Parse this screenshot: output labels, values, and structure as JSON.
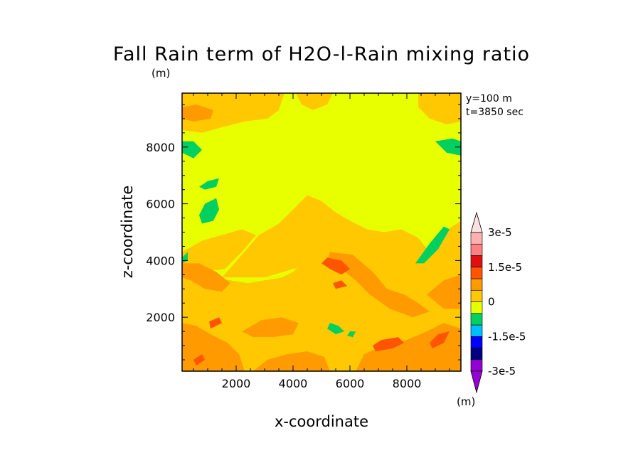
{
  "chart_data": {
    "type": "heatmap",
    "title": "Fall Rain term of H2O-l-Rain mixing ratio",
    "units": "(m)",
    "xlabel": "x-coordinate",
    "ylabel": "z-coordinate",
    "xlim": [
      100,
      9900
    ],
    "ylim": [
      100,
      9900
    ],
    "xticks": [
      2000,
      4000,
      6000,
      8000
    ],
    "yticks": [
      2000,
      4000,
      6000,
      8000
    ],
    "annotations": [
      "y=100 m",
      "t=3850 sec"
    ],
    "colorbar": {
      "units": "(m)",
      "labels": [
        {
          "text": "3e-5",
          "value": 3e-05
        },
        {
          "text": "1.5e-5",
          "value": 1.5e-05
        },
        {
          "text": "0",
          "value": 0
        },
        {
          "text": "-1.5e-5",
          "value": -1.5e-05
        },
        {
          "text": "-3e-5",
          "value": -3e-05
        }
      ],
      "colors": [
        "#9400d3",
        "#000080",
        "#0000ff",
        "#00bfff",
        "#00d060",
        "#e8ff00",
        "#ffc800",
        "#ff9a00",
        "#ff5500",
        "#e01010",
        "#ff8080",
        "#ffb0b0"
      ],
      "over_color": "#ffe0e0",
      "under_color": "#9400d3",
      "levels": [
        -3e-05,
        -2.5e-05,
        -2e-05,
        -1.5e-05,
        -1e-05,
        -5e-06,
        0,
        5e-06,
        1e-05,
        1.5e-05,
        2e-05,
        2.5e-05,
        3e-05
      ]
    },
    "field_colors": {
      "background": "#e8ff00",
      "light_orange": "#ffc800",
      "orange": "#ff9a00",
      "dark_orange": "#ff5500",
      "green": "#00d060"
    },
    "regions": [
      {
        "level": "light_orange",
        "points": [
          [
            100,
            100
          ],
          [
            9900,
            100
          ],
          [
            9900,
            5400
          ],
          [
            9000,
            4800
          ],
          [
            8600,
            4200
          ],
          [
            8000,
            3900
          ],
          [
            7200,
            3800
          ],
          [
            6700,
            4000
          ],
          [
            6200,
            4100
          ],
          [
            5700,
            4200
          ],
          [
            5200,
            4300
          ],
          [
            4800,
            4200
          ],
          [
            4400,
            4000
          ],
          [
            4000,
            3600
          ],
          [
            3600,
            3400
          ],
          [
            3000,
            3300
          ],
          [
            2400,
            3200
          ],
          [
            1800,
            3300
          ],
          [
            1200,
            3400
          ],
          [
            600,
            3500
          ],
          [
            100,
            3600
          ]
        ]
      },
      {
        "level": "light_orange",
        "points": [
          [
            1500,
            3400
          ],
          [
            2200,
            4200
          ],
          [
            2800,
            4900
          ],
          [
            3500,
            5300
          ],
          [
            4000,
            5800
          ],
          [
            4500,
            6300
          ],
          [
            5000,
            6100
          ],
          [
            5500,
            5700
          ],
          [
            6000,
            5400
          ],
          [
            6600,
            5100
          ],
          [
            7200,
            5000
          ],
          [
            7800,
            5100
          ],
          [
            8400,
            4800
          ],
          [
            8800,
            4300
          ],
          [
            8400,
            3800
          ],
          [
            7600,
            3700
          ],
          [
            6800,
            3800
          ],
          [
            6000,
            3900
          ],
          [
            5000,
            4000
          ],
          [
            4000,
            3700
          ],
          [
            3000,
            3400
          ]
        ]
      },
      {
        "level": "light_orange",
        "points": [
          [
            100,
            4300
          ],
          [
            800,
            4700
          ],
          [
            1500,
            4900
          ],
          [
            2200,
            5100
          ],
          [
            2700,
            4900
          ],
          [
            2200,
            4300
          ],
          [
            1600,
            3700
          ],
          [
            800,
            3600
          ],
          [
            100,
            3700
          ]
        ]
      },
      {
        "level": "light_orange",
        "points": [
          [
            100,
            9900
          ],
          [
            3700,
            9900
          ],
          [
            3500,
            9300
          ],
          [
            3100,
            9000
          ],
          [
            2300,
            8900
          ],
          [
            1500,
            8700
          ],
          [
            800,
            8500
          ],
          [
            100,
            8600
          ]
        ]
      },
      {
        "level": "light_orange",
        "points": [
          [
            4100,
            9900
          ],
          [
            5400,
            9900
          ],
          [
            5200,
            9500
          ],
          [
            4700,
            9300
          ],
          [
            4300,
            9500
          ]
        ]
      },
      {
        "level": "light_orange",
        "points": [
          [
            8400,
            9900
          ],
          [
            9900,
            9900
          ],
          [
            9900,
            8900
          ],
          [
            9400,
            8800
          ],
          [
            8800,
            9000
          ],
          [
            8400,
            9400
          ]
        ]
      },
      {
        "level": "orange",
        "points": [
          [
            100,
            100
          ],
          [
            2300,
            100
          ],
          [
            2100,
            700
          ],
          [
            1700,
            1100
          ],
          [
            1100,
            1400
          ],
          [
            600,
            1700
          ],
          [
            100,
            1800
          ]
        ]
      },
      {
        "level": "orange",
        "points": [
          [
            2600,
            100
          ],
          [
            5300,
            100
          ],
          [
            5100,
            600
          ],
          [
            4500,
            800
          ],
          [
            3800,
            700
          ],
          [
            3100,
            500
          ]
        ]
      },
      {
        "level": "orange",
        "points": [
          [
            6200,
            100
          ],
          [
            9900,
            100
          ],
          [
            9900,
            1600
          ],
          [
            9300,
            1800
          ],
          [
            8700,
            1500
          ],
          [
            8000,
            1200
          ],
          [
            7200,
            1000
          ],
          [
            6500,
            700
          ]
        ]
      },
      {
        "level": "orange",
        "points": [
          [
            5300,
            4300
          ],
          [
            6100,
            4200
          ],
          [
            6800,
            3600
          ],
          [
            7300,
            3000
          ],
          [
            7900,
            2800
          ],
          [
            8400,
            2500
          ],
          [
            8800,
            2200
          ],
          [
            8200,
            2000
          ],
          [
            7400,
            2300
          ],
          [
            6700,
            2800
          ],
          [
            6200,
            3300
          ],
          [
            5700,
            3700
          ],
          [
            5200,
            4000
          ]
        ]
      },
      {
        "level": "orange",
        "points": [
          [
            100,
            3900
          ],
          [
            700,
            3900
          ],
          [
            1300,
            3600
          ],
          [
            1800,
            3200
          ],
          [
            1500,
            2900
          ],
          [
            900,
            3000
          ],
          [
            400,
            3300
          ],
          [
            100,
            3400
          ]
        ]
      },
      {
        "level": "orange",
        "points": [
          [
            2200,
            1500
          ],
          [
            2900,
            1900
          ],
          [
            3600,
            2000
          ],
          [
            4200,
            1800
          ],
          [
            4000,
            1400
          ],
          [
            3300,
            1300
          ],
          [
            2600,
            1300
          ]
        ]
      },
      {
        "level": "orange",
        "points": [
          [
            8700,
            2800
          ],
          [
            9300,
            3300
          ],
          [
            9900,
            3500
          ],
          [
            9900,
            2300
          ],
          [
            9300,
            2300
          ]
        ]
      },
      {
        "level": "orange",
        "points": [
          [
            100,
            9400
          ],
          [
            600,
            9500
          ],
          [
            1200,
            9300
          ],
          [
            1100,
            9000
          ],
          [
            500,
            8900
          ],
          [
            100,
            9000
          ]
        ]
      },
      {
        "level": "dark_orange",
        "points": [
          [
            5200,
            4100
          ],
          [
            5700,
            4000
          ],
          [
            6000,
            3700
          ],
          [
            5700,
            3500
          ],
          [
            5300,
            3700
          ],
          [
            5000,
            3900
          ]
        ]
      },
      {
        "level": "dark_orange",
        "points": [
          [
            6900,
            800
          ],
          [
            7500,
            900
          ],
          [
            7900,
            1100
          ],
          [
            7700,
            1300
          ],
          [
            7100,
            1200
          ],
          [
            6800,
            1000
          ]
        ]
      },
      {
        "level": "dark_orange",
        "points": [
          [
            1100,
            1600
          ],
          [
            1500,
            1800
          ],
          [
            1400,
            2000
          ],
          [
            1050,
            1850
          ]
        ]
      },
      {
        "level": "dark_orange",
        "points": [
          [
            8900,
            900
          ],
          [
            9300,
            1100
          ],
          [
            9500,
            1500
          ],
          [
            9100,
            1400
          ],
          [
            8800,
            1100
          ]
        ]
      },
      {
        "level": "dark_orange",
        "points": [
          [
            600,
            300
          ],
          [
            900,
            500
          ],
          [
            800,
            700
          ],
          [
            500,
            500
          ]
        ]
      },
      {
        "level": "dark_orange",
        "points": [
          [
            5500,
            3000
          ],
          [
            5900,
            3100
          ],
          [
            5700,
            3300
          ],
          [
            5400,
            3200
          ]
        ]
      },
      {
        "level": "green",
        "points": [
          [
            100,
            8200
          ],
          [
            500,
            8200
          ],
          [
            800,
            7900
          ],
          [
            500,
            7600
          ],
          [
            100,
            7800
          ]
        ]
      },
      {
        "level": "green",
        "points": [
          [
            700,
            6600
          ],
          [
            1000,
            6800
          ],
          [
            1400,
            6900
          ],
          [
            1300,
            6600
          ],
          [
            900,
            6500
          ]
        ]
      },
      {
        "level": "green",
        "points": [
          [
            700,
            5600
          ],
          [
            900,
            6000
          ],
          [
            1300,
            6200
          ],
          [
            1400,
            5800
          ],
          [
            1200,
            5400
          ],
          [
            800,
            5300
          ]
        ]
      },
      {
        "level": "green",
        "points": [
          [
            8300,
            3900
          ],
          [
            8800,
            4600
          ],
          [
            9300,
            5200
          ],
          [
            9500,
            5100
          ],
          [
            9100,
            4400
          ],
          [
            8600,
            3900
          ]
        ]
      },
      {
        "level": "green",
        "points": [
          [
            9000,
            8200
          ],
          [
            9600,
            8300
          ],
          [
            9900,
            8200
          ],
          [
            9900,
            7700
          ],
          [
            9400,
            7800
          ]
        ]
      },
      {
        "level": "green",
        "points": [
          [
            100,
            4100
          ],
          [
            300,
            4300
          ],
          [
            300,
            4000
          ],
          [
            100,
            3900
          ]
        ]
      },
      {
        "level": "green",
        "points": [
          [
            5300,
            1800
          ],
          [
            5600,
            1700
          ],
          [
            5800,
            1500
          ],
          [
            5500,
            1400
          ],
          [
            5200,
            1600
          ]
        ]
      },
      {
        "level": "green",
        "points": [
          [
            6000,
            1500
          ],
          [
            6200,
            1500
          ],
          [
            6100,
            1300
          ],
          [
            5900,
            1350
          ]
        ]
      }
    ]
  }
}
